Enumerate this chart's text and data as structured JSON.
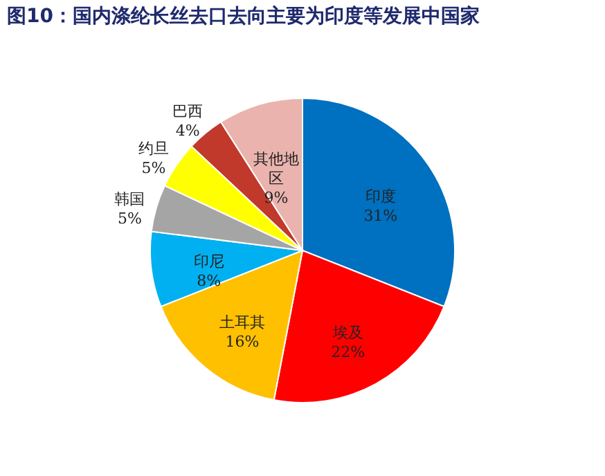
{
  "chart_data": {
    "type": "pie",
    "title": "图10：国内涤纶长丝去口去向主要为印度等发展中国家",
    "categories": [
      "印度",
      "埃及",
      "土耳其",
      "印尼",
      "韩国",
      "约旦",
      "巴西",
      "其他地区"
    ],
    "values": [
      31,
      22,
      16,
      8,
      5,
      5,
      4,
      9
    ],
    "value_labels": [
      "31%",
      "22%",
      "16%",
      "8%",
      "5%",
      "5%",
      "4%",
      "9%"
    ],
    "colors": [
      "#0070c0",
      "#ff0000",
      "#ffc000",
      "#00b0f0",
      "#a5a5a5",
      "#ffff00",
      "#c0392b",
      "#eab3ad"
    ],
    "legend": false
  }
}
